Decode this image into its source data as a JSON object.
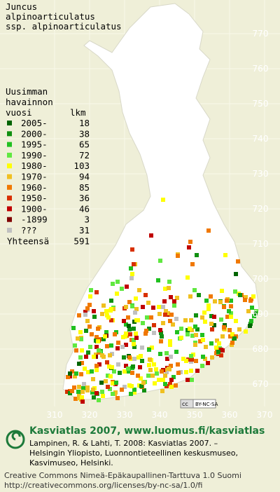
{
  "map": {
    "title": [
      "Juncus",
      "alpinoarticulatus",
      "ssp. alpinoarticulatus"
    ],
    "legend": {
      "heading": [
        "Uusimman",
        "havainnon"
      ],
      "year_header": "vuosi",
      "count_header": "lkm",
      "entries": [
        {
          "label": "2005-",
          "count": 18,
          "color": "#006400"
        },
        {
          "label": "2000-",
          "count": 38,
          "color": "#109010"
        },
        {
          "label": "1995-",
          "count": 65,
          "color": "#20c020"
        },
        {
          "label": "1990-",
          "count": 72,
          "color": "#60e840"
        },
        {
          "label": "1980-",
          "count": 103,
          "color": "#ffff00"
        },
        {
          "label": "1970-",
          "count": 94,
          "color": "#f0c020"
        },
        {
          "label": "1960-",
          "count": 85,
          "color": "#f07800"
        },
        {
          "label": "1950-",
          "count": 36,
          "color": "#d83000"
        },
        {
          "label": "1900-",
          "count": 46,
          "color": "#c00000"
        },
        {
          "label": "-1899",
          "count": 3,
          "color": "#800000"
        },
        {
          "label": "???",
          "count": 31,
          "color": "#c0c0c0"
        }
      ],
      "total_label": "Yhteensä",
      "total": 591
    },
    "grid_y_labels": [
      770,
      760,
      750,
      740,
      730,
      720,
      710,
      700,
      690,
      680,
      670
    ],
    "grid_x_labels": [
      310,
      320,
      330,
      340,
      350,
      360,
      370
    ],
    "badge": "BY-NC-SA",
    "footer": {
      "headline": "Kasviatlas 2007, www.luomus.fi/kasviatlas",
      "citation": [
        "Lampinen, R. & Lahti, T. 2008: Kasviatlas 2007. –",
        "Helsingin Yliopisto, Luonnontieteellinen keskusmuseo,",
        "Kasvimuseo, Helsinki."
      ],
      "license": [
        "Creative Commons Nimeä-Epäkaupallinen-Tarttuva 1.0 Suomi",
        "http://creativecommons.org/licenses/by-nc-sa/1.0/fi"
      ]
    }
  }
}
